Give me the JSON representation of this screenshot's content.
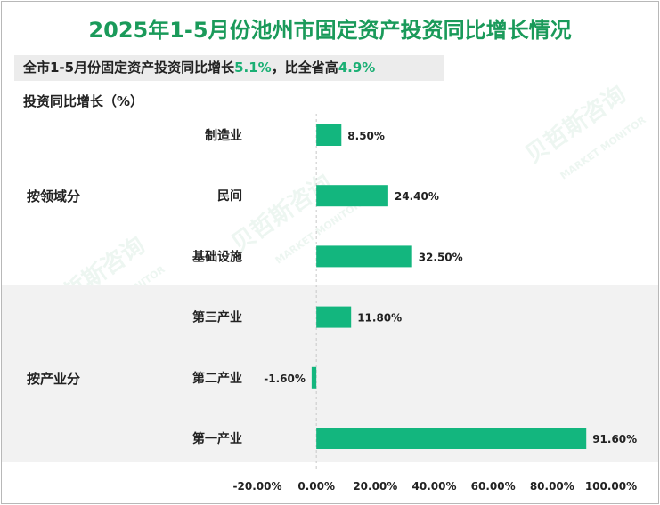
{
  "title": "2025年1-5月份池州市固定资产投资同比增长情况",
  "summary": {
    "prefix": "全市1-5月份固定资产投资同比增长",
    "growth": "5.1%",
    "middle": "，比全省高",
    "diff": "4.9%"
  },
  "y_axis_label": "投资同比增长（%）",
  "colors": {
    "bar": "#13b67e",
    "title": "#1a9a5a",
    "highlight": "#1aaf74",
    "band": "#f2f2f2"
  },
  "watermark": {
    "cn": "贝哲斯咨询",
    "en": "MARKET MONITOR"
  },
  "chart_data": {
    "type": "bar",
    "orientation": "horizontal",
    "groups": [
      {
        "name": "按领域分",
        "categories": [
          "制造业",
          "民间",
          "基础设施"
        ],
        "values": [
          8.5,
          24.4,
          32.5
        ]
      },
      {
        "name": "按产业分",
        "categories": [
          "第三产业",
          "第二产业",
          "第一产业"
        ],
        "values": [
          11.8,
          -1.6,
          91.6
        ]
      }
    ],
    "value_labels": [
      "8.50%",
      "24.40%",
      "32.50%",
      "11.80%",
      "-1.60%",
      "91.60%"
    ],
    "xlim": [
      -20,
      100
    ],
    "x_ticks": [
      -20,
      0,
      20,
      40,
      60,
      80,
      100
    ],
    "x_tick_labels": [
      "-20.00%",
      "0.00%",
      "20.00%",
      "40.00%",
      "60.00%",
      "80.00%",
      "100.00%"
    ],
    "ylabel": "投资同比增长（%）"
  }
}
